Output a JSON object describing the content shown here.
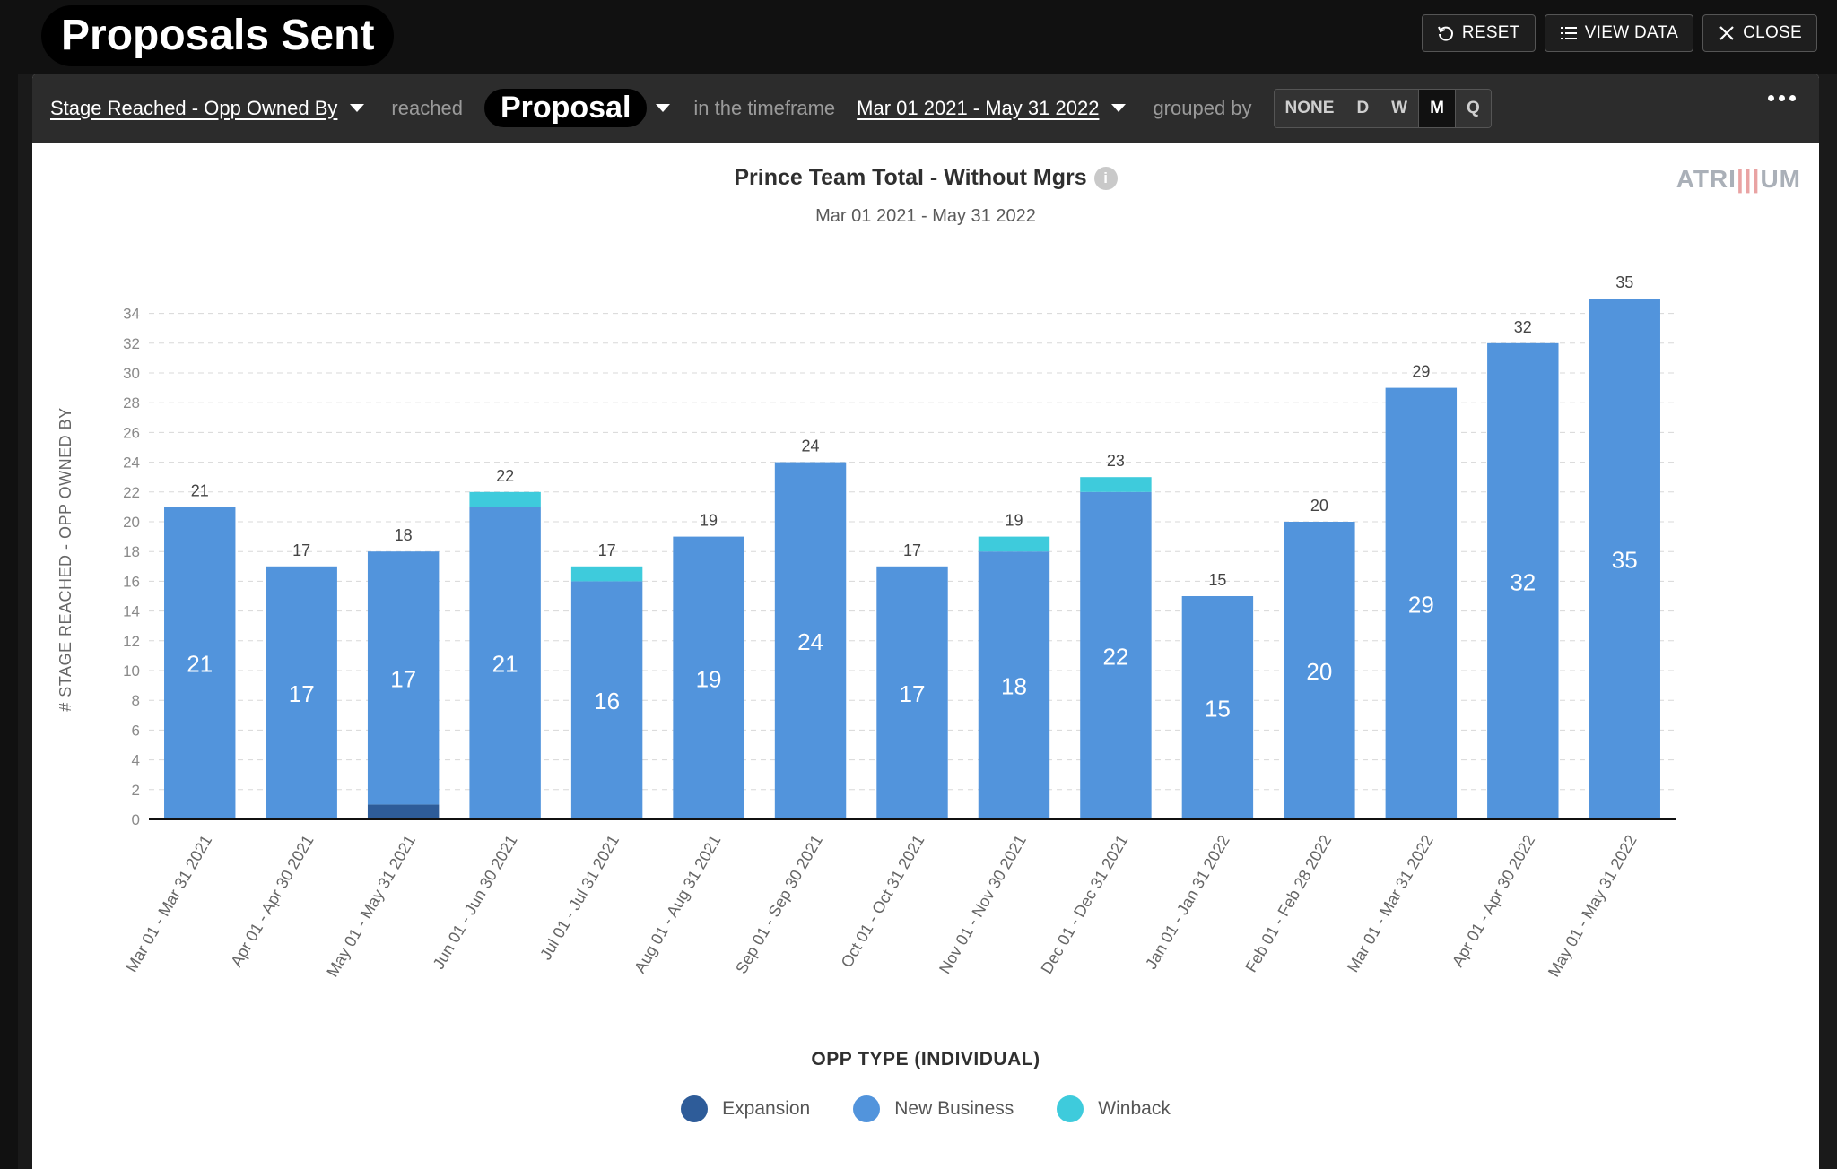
{
  "header": {
    "title": "Proposals Sent",
    "reset_label": "RESET",
    "view_data_label": "VIEW DATA",
    "close_label": "CLOSE"
  },
  "toolbar": {
    "metric": "Stage Reached - Opp Owned By",
    "reached_text": "reached",
    "stage": "Proposal",
    "timeframe_text": "in the timeframe",
    "timeframe": "Mar 01 2021 - May 31 2022",
    "grouped_text": "grouped by",
    "grouping_options": [
      "NONE",
      "D",
      "W",
      "M",
      "Q"
    ],
    "grouping_selected": "M"
  },
  "brand": {
    "prefix": "ATRI",
    "bars": "|||",
    "suffix": "UM"
  },
  "colors": {
    "expansion": "#2e5c99",
    "new_business": "#5294dc",
    "winback": "#3ecbdc"
  },
  "chart_data": {
    "type": "bar",
    "stacked": true,
    "title": "Prince Team Total - Without Mgrs",
    "subtitle": "Mar 01 2021 - May 31 2022",
    "ylabel": "# STAGE REACHED - OPP OWNED BY",
    "xlabel": "",
    "ylim": [
      0,
      34
    ],
    "ytick_step": 2,
    "grid": true,
    "legend_title": "OPP TYPE (INDIVIDUAL)",
    "legend_position": "bottom",
    "categories": [
      "Mar 01 - Mar 31 2021",
      "Apr 01 - Apr 30 2021",
      "May 01 - May 31 2021",
      "Jun 01 - Jun 30 2021",
      "Jul 01 - Jul 31 2021",
      "Aug 01 - Aug 31 2021",
      "Sep 01 - Sep 30 2021",
      "Oct 01 - Oct 31 2021",
      "Nov 01 - Nov 30 2021",
      "Dec 01 - Dec 31 2021",
      "Jan 01 - Jan 31 2022",
      "Feb 01 - Feb 28 2022",
      "Mar 01 - Mar 31 2022",
      "Apr 01 - Apr 30 2022",
      "May 01 - May 31 2022"
    ],
    "series": [
      {
        "name": "Expansion",
        "color_key": "expansion",
        "values": [
          0,
          0,
          1,
          0,
          0,
          0,
          0,
          0,
          0,
          0,
          0,
          0,
          0,
          0,
          0
        ]
      },
      {
        "name": "New Business",
        "color_key": "new_business",
        "values": [
          21,
          17,
          17,
          21,
          16,
          19,
          24,
          17,
          18,
          22,
          15,
          20,
          29,
          32,
          35
        ]
      },
      {
        "name": "Winback",
        "color_key": "winback",
        "values": [
          0,
          0,
          0,
          1,
          1,
          0,
          0,
          0,
          1,
          1,
          0,
          0,
          0,
          0,
          0
        ]
      }
    ],
    "totals": [
      21,
      17,
      18,
      22,
      17,
      19,
      24,
      17,
      19,
      23,
      15,
      20,
      29,
      32,
      35
    ]
  }
}
